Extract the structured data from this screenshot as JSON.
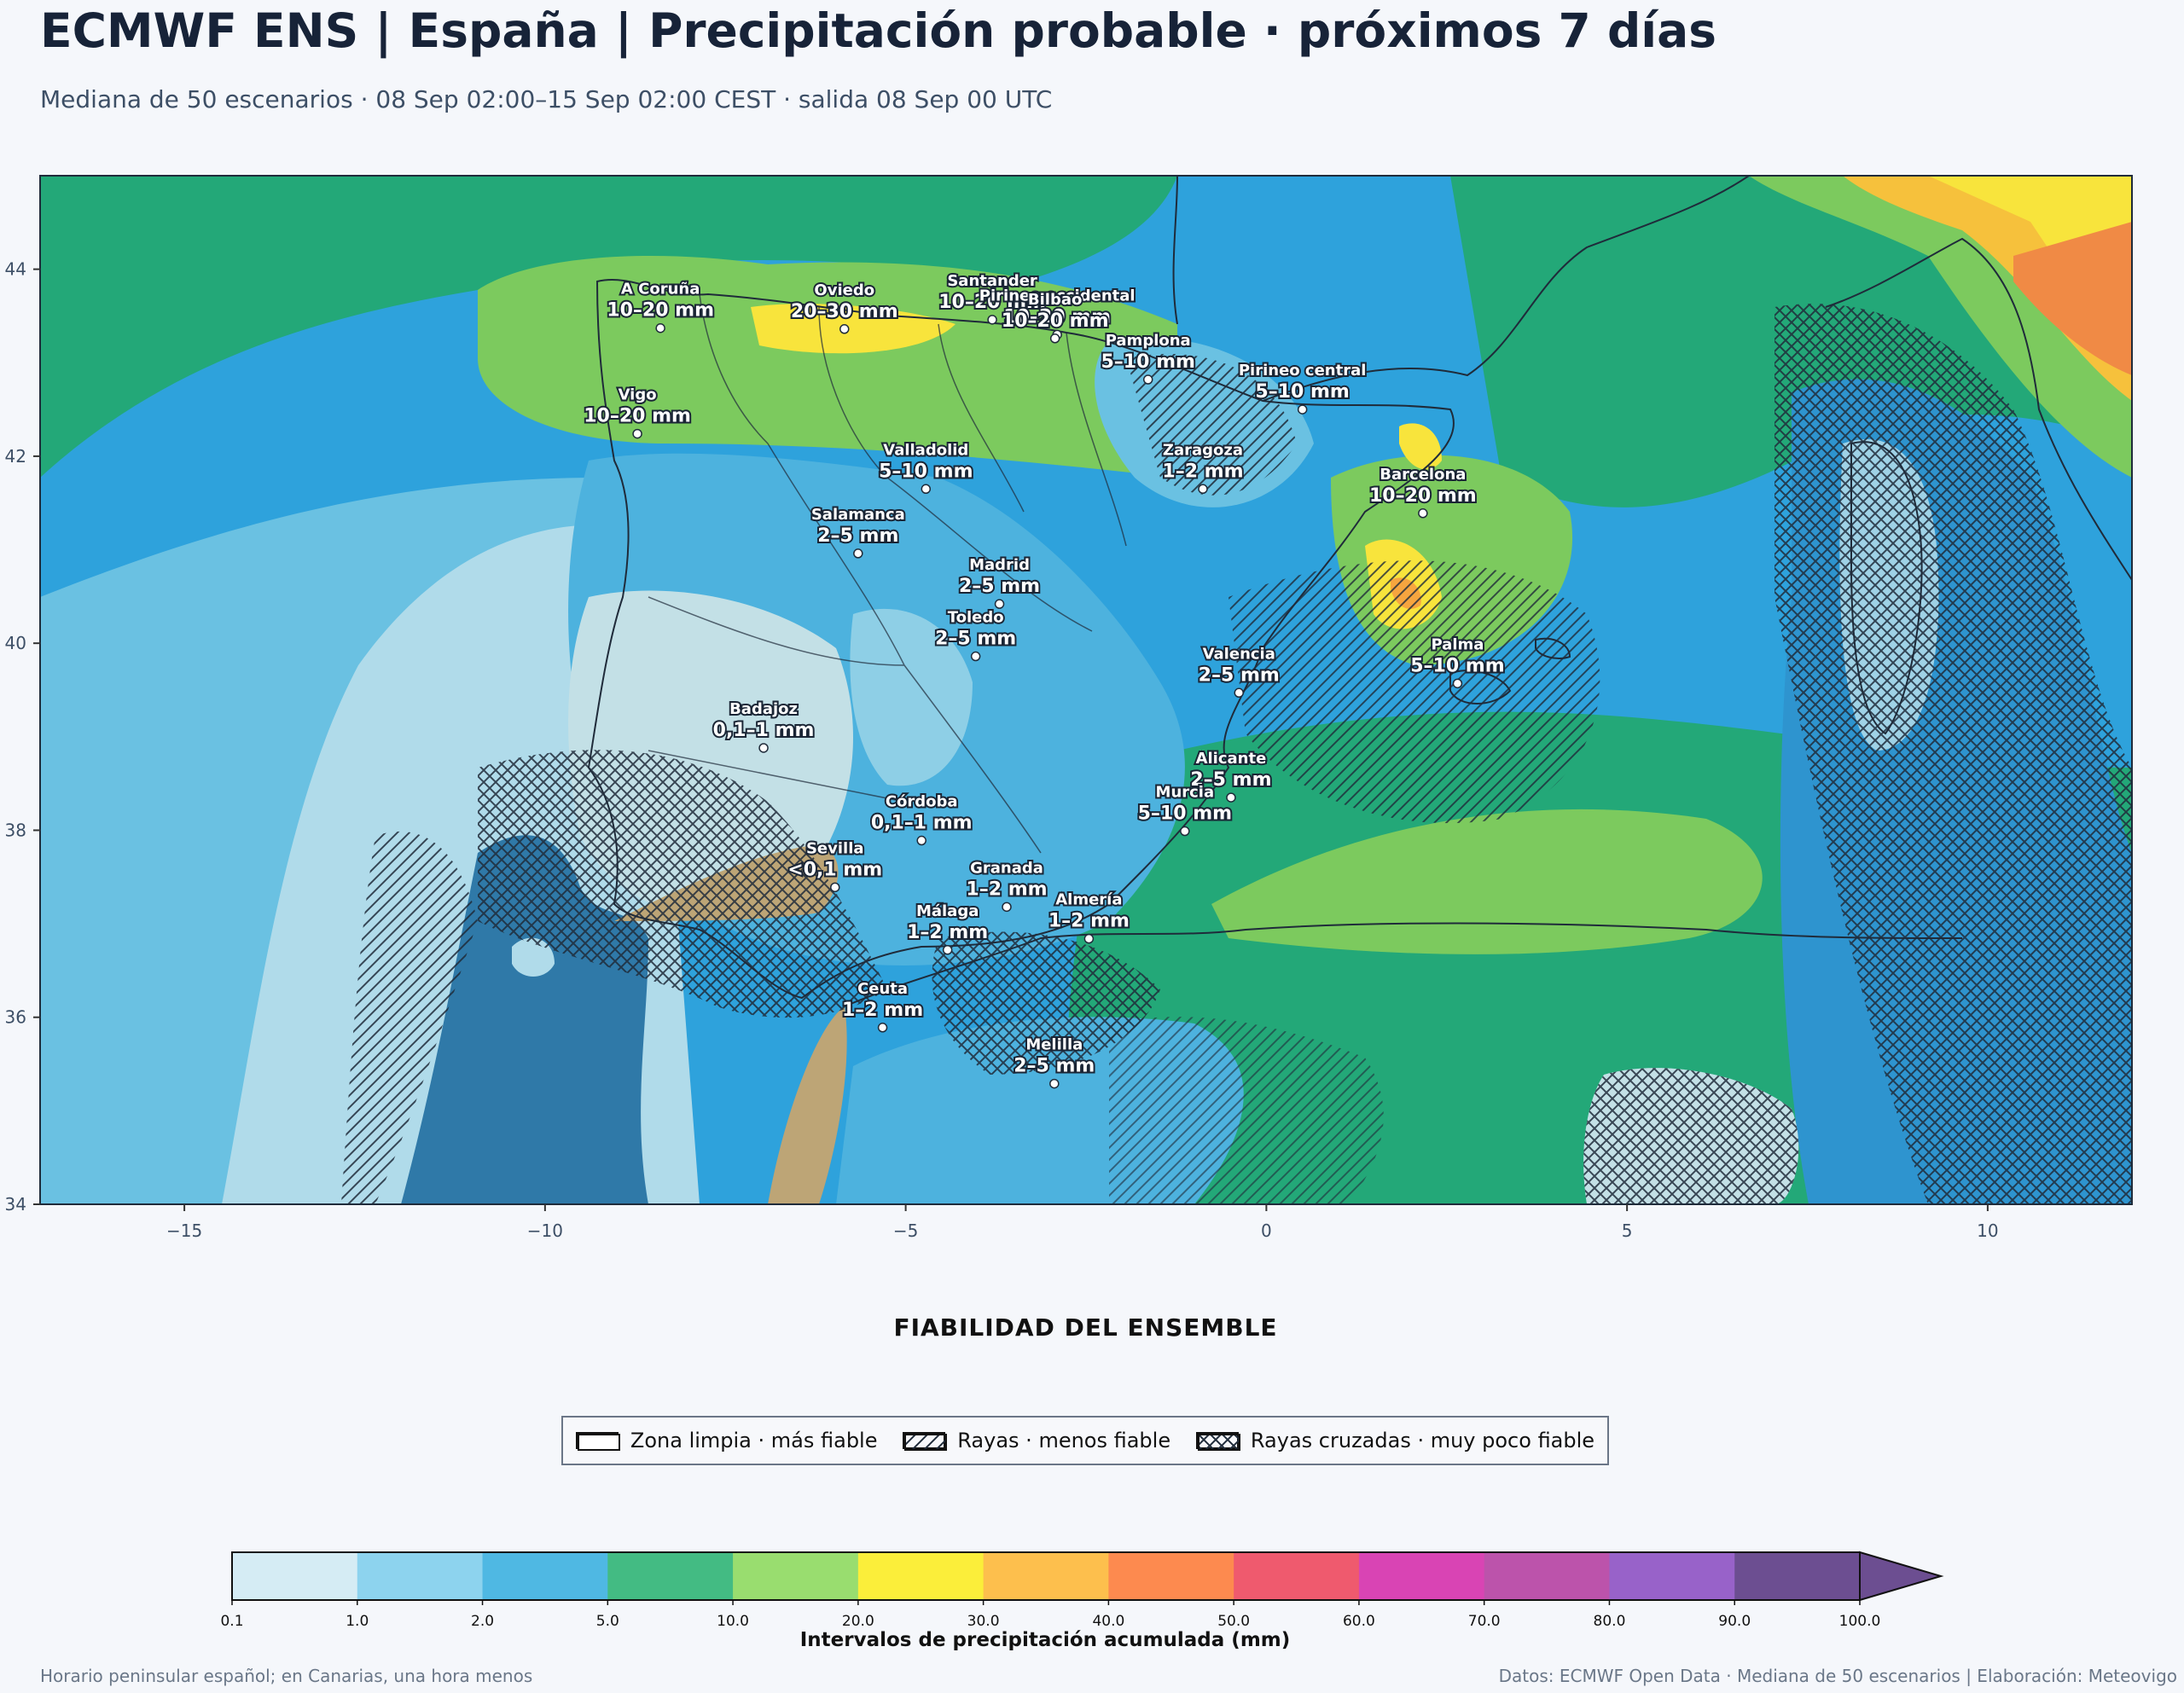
{
  "header": {
    "title": "ECMWF ENS | España | Precipitación probable · próximos 7 días",
    "subtitle": "Mediana de 50 escenarios · 08 Sep 02:00–15 Sep 02:00 CEST · salida 08 Sep 00 UTC"
  },
  "map": {
    "lon_range": [
      -17,
      12
    ],
    "lat_range": [
      34,
      45
    ],
    "x_ticks": [
      {
        "value": -15,
        "label": "−15"
      },
      {
        "value": -10,
        "label": "−10"
      },
      {
        "value": -5,
        "label": "−5"
      },
      {
        "value": 0,
        "label": "0"
      },
      {
        "value": 5,
        "label": "5"
      },
      {
        "value": 10,
        "label": "10"
      }
    ],
    "y_ticks": [
      {
        "value": 44,
        "label": "44"
      },
      {
        "value": 42,
        "label": "42"
      },
      {
        "value": 40,
        "label": "40"
      },
      {
        "value": 38,
        "label": "38"
      },
      {
        "value": 36,
        "label": "36"
      },
      {
        "value": 34,
        "label": "34"
      }
    ],
    "cities": [
      {
        "name": "A Coruña",
        "value": "10–20 mm",
        "lon": -8.4,
        "lat": 43.37
      },
      {
        "name": "Oviedo",
        "value": "20–30 mm",
        "lon": -5.85,
        "lat": 43.36
      },
      {
        "name": "Santander",
        "value": "10–20 mm",
        "lon": -3.8,
        "lat": 43.46
      },
      {
        "name": "Pirineo occidental",
        "value": "10–20 mm",
        "lon": -2.9,
        "lat": 43.3
      },
      {
        "name": "Pamplona",
        "value": "5–10 mm",
        "lon": -1.64,
        "lat": 42.82
      },
      {
        "name": "Pirineo central",
        "value": "5–10 mm",
        "lon": 0.5,
        "lat": 42.5
      },
      {
        "name": "Bilbao",
        "value": "10–20 mm",
        "lon": -2.93,
        "lat": 43.26
      },
      {
        "name": "Vigo",
        "value": "10–20 mm",
        "lon": -8.72,
        "lat": 42.24
      },
      {
        "name": "Valladolid",
        "value": "5–10 mm",
        "lon": -4.72,
        "lat": 41.65
      },
      {
        "name": "Zaragoza",
        "value": "1–2 mm",
        "lon": -0.88,
        "lat": 41.65
      },
      {
        "name": "Barcelona",
        "value": "10–20 mm",
        "lon": 2.17,
        "lat": 41.39
      },
      {
        "name": "Salamanca",
        "value": "2–5 mm",
        "lon": -5.66,
        "lat": 40.96
      },
      {
        "name": "Madrid",
        "value": "2–5 mm",
        "lon": -3.7,
        "lat": 40.42
      },
      {
        "name": "Valencia",
        "value": "2–5 mm",
        "lon": -0.38,
        "lat": 39.47
      },
      {
        "name": "Palma",
        "value": "5–10 mm",
        "lon": 2.65,
        "lat": 39.57
      },
      {
        "name": "Toledo",
        "value": "2–5 mm",
        "lon": -4.03,
        "lat": 39.86
      },
      {
        "name": "Badajoz",
        "value": "0,1–1 mm",
        "lon": -6.97,
        "lat": 38.88
      },
      {
        "name": "Córdoba",
        "value": "0,1–1 mm",
        "lon": -4.78,
        "lat": 37.89
      },
      {
        "name": "Alicante",
        "value": "2–5 mm",
        "lon": -0.49,
        "lat": 38.35
      },
      {
        "name": "Murcia",
        "value": "5–10 mm",
        "lon": -1.13,
        "lat": 37.99
      },
      {
        "name": "Granada",
        "value": "1–2 mm",
        "lon": -3.6,
        "lat": 37.18
      },
      {
        "name": "Sevilla",
        "value": "<0,1 mm",
        "lon": -5.98,
        "lat": 37.39
      },
      {
        "name": "Almería",
        "value": "1–2 mm",
        "lon": -2.46,
        "lat": 36.84
      },
      {
        "name": "Málaga",
        "value": "1–2 mm",
        "lon": -4.42,
        "lat": 36.72
      },
      {
        "name": "Ceuta",
        "value": "1–2 mm",
        "lon": -5.32,
        "lat": 35.89
      },
      {
        "name": "Melilla",
        "value": "2–5 mm",
        "lon": -2.94,
        "lat": 35.29
      }
    ]
  },
  "reliability": {
    "title": "FIABILIDAD DEL ENSEMBLE",
    "items": [
      {
        "label": "Zona limpia · más fiable",
        "pattern": "clean"
      },
      {
        "label": "Rayas · menos fiable",
        "pattern": "hatch"
      },
      {
        "label": "Rayas cruzadas · muy poco fiable",
        "pattern": "cross"
      }
    ]
  },
  "colorbar": {
    "label": "Intervalos de precipitación acumulada (mm)",
    "ticks": [
      "0.1",
      "1.0",
      "2.0",
      "5.0",
      "10.0",
      "20.0",
      "30.0",
      "40.0",
      "50.0",
      "60.0",
      "70.0",
      "80.0",
      "90.0",
      "100.0"
    ],
    "colors": [
      "#d5ecf4",
      "#8dd3ee",
      "#4fb8e3",
      "#43bb83",
      "#99dd6f",
      "#fbee3a",
      "#fdbf4d",
      "#fd8a4f",
      "#ef5a6e",
      "#d944b4",
      "#bc53ab",
      "#9862c9",
      "#6c4e91"
    ],
    "extend_color": "#6c4e91"
  },
  "footer": {
    "left": "Horario peninsular español; en Canarias, una hora menos",
    "right": "Datos: ECMWF Open Data · Mediana de 50 escenarios | Elaboración: Meteovigo"
  },
  "palette": {
    "ocean_deep": "#2f79a8",
    "ocean": "#2ea2dc",
    "green": "#23a878",
    "light_green": "#7cca5e",
    "yellow": "#f8e43c",
    "orange": "#f6a53f",
    "land_dry": "#c3e0e6",
    "sand": "#bda576"
  }
}
